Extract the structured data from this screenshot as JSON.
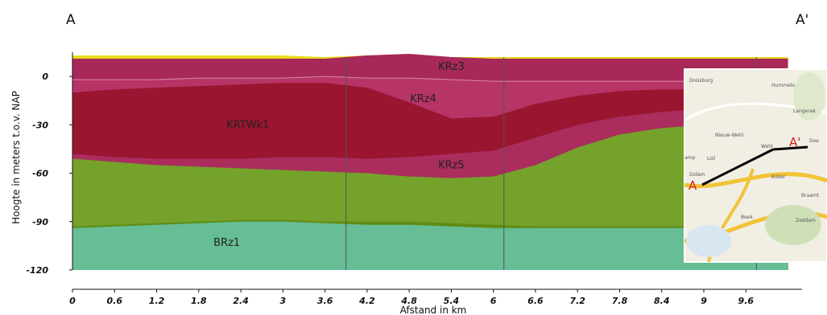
{
  "section": {
    "start_label": "A",
    "end_label": "A'"
  },
  "chart_data": {
    "type": "area",
    "xlabel": "Afstand in km",
    "ylabel": "Hoogte in meters t.o.v. NAP",
    "xlim": [
      0,
      10.4
    ],
    "ylim": [
      -125,
      20
    ],
    "x_ticks": [
      "0",
      "0.6",
      "1.2",
      "1.8",
      "2.4",
      "3",
      "3.6",
      "4.2",
      "4.8",
      "5.4",
      "6",
      "6.6",
      "7.2",
      "7.8",
      "8.4",
      "9",
      "9.6"
    ],
    "y_ticks": [
      "0",
      "-30",
      "-60",
      "-90",
      "-120"
    ],
    "bottom": -120,
    "x": [
      0,
      0.6,
      1.2,
      1.8,
      2.4,
      3,
      3.6,
      4.2,
      4.8,
      5.4,
      6,
      6.6,
      7.2,
      7.8,
      8.4,
      9,
      9.6,
      10.2
    ],
    "layers": [
      {
        "name": "BRz1",
        "color": "#66bd96",
        "label_at": [
          2.2,
          -105
        ],
        "top": [
          -94,
          -93,
          -92,
          -91,
          -90,
          -90,
          -91,
          -92,
          -92,
          -93,
          -94,
          -94,
          -94,
          -94,
          -94,
          -94,
          -94,
          -94
        ]
      },
      {
        "name": "",
        "color": "#5f8c12",
        "top": [
          -93,
          -92,
          -91,
          -90,
          -89,
          -89,
          -90,
          -90,
          -90,
          -91,
          -92,
          -93,
          -93,
          -93,
          -93,
          -93,
          -93,
          -93
        ]
      },
      {
        "name": "",
        "color": "#74a22a",
        "top": [
          -51,
          -53,
          -55,
          -56,
          -57,
          -58,
          -59,
          -60,
          -62,
          -63,
          -62,
          -55,
          -44,
          -36,
          -32,
          -30,
          -30,
          -30
        ]
      },
      {
        "name": "KRz5",
        "color": "#aa2d5e",
        "label_at": [
          5.4,
          -57
        ],
        "top": [
          -48,
          -50,
          -51,
          -51,
          -51,
          -50,
          -50,
          -51,
          -50,
          -48,
          -46,
          -38,
          -30,
          -25,
          -22,
          -20,
          -20,
          -20
        ]
      },
      {
        "name": "KRTWk1",
        "color": "#9a1530",
        "label_at": [
          2.5,
          -32
        ],
        "top": [
          -10,
          -8,
          -7,
          -6,
          -5,
          -4,
          -4,
          -7,
          -16,
          -26,
          -25,
          -17,
          -12,
          -9,
          -8,
          -8,
          -8,
          -8
        ]
      },
      {
        "name": "KRz4",
        "color": "#b73466",
        "label_at": [
          5.0,
          -16
        ],
        "top": [
          -2,
          -2,
          -2,
          -1,
          -1,
          -1,
          0,
          -1,
          -1,
          -2,
          -3,
          -3,
          -3,
          -3,
          -3,
          -3,
          -3,
          -3
        ]
      },
      {
        "name": "KRz3",
        "color": "#a8285a",
        "label_at": [
          5.4,
          4
        ],
        "top": [
          11,
          11,
          11,
          11,
          11,
          11,
          11,
          13,
          14,
          12,
          11,
          11,
          11,
          11,
          11,
          11,
          11,
          11
        ]
      },
      {
        "name": "",
        "color": "#e8dd1a",
        "top": [
          13,
          13,
          13,
          13,
          13,
          13,
          12,
          13,
          14,
          12,
          12,
          12,
          12,
          12,
          12,
          12,
          12,
          12
        ]
      }
    ],
    "vertical_lines": [
      3.9,
      6.15,
      9.75
    ]
  },
  "inset_map": {
    "places": [
      "Dreisburg",
      "Hummelo",
      "Langerak",
      "Nieuw-Wehl",
      "Wehl",
      "Doe",
      "amp",
      "Loil",
      "Didam",
      "Kilder",
      "Braamt",
      "Beek",
      "Zeddam"
    ],
    "point_a": "A",
    "point_a_prime": "A'"
  }
}
